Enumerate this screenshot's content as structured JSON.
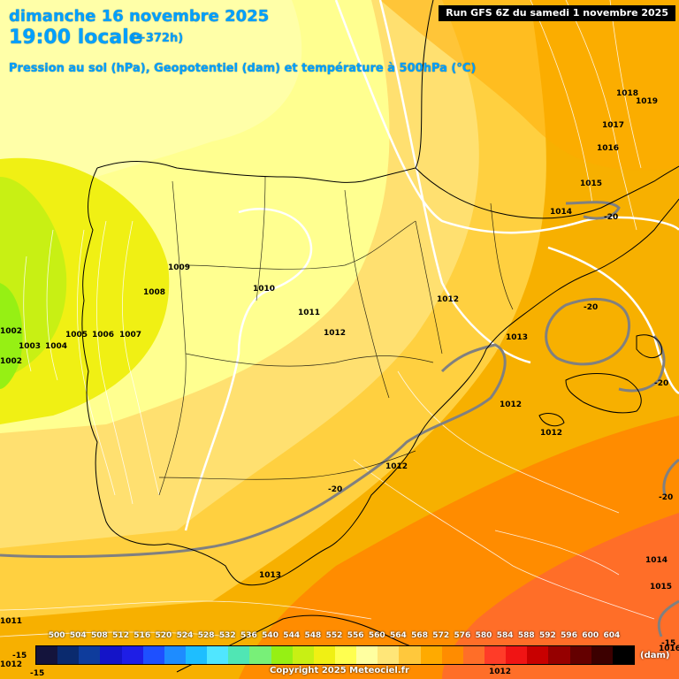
{
  "header": {
    "date_line": "dimanche 16 novembre 2025",
    "time_line": "19:00 locale",
    "lead_time": "(+372h)",
    "subtitle": "Pression au sol (hPa), Geopotentiel (dam) et température à 500hPa (°C)",
    "run_info": "Run GFS 6Z du samedi 1 novembre 2025"
  },
  "legend": {
    "ticks": [
      "500",
      "504",
      "508",
      "512",
      "516",
      "520",
      "524",
      "528",
      "532",
      "536",
      "540",
      "544",
      "548",
      "552",
      "556",
      "560",
      "564",
      "568",
      "572",
      "576",
      "580",
      "584",
      "588",
      "592",
      "596",
      "600",
      "604"
    ],
    "colors": [
      "#14143c",
      "#0a2a6e",
      "#0e3c9c",
      "#1414c8",
      "#1e1ee6",
      "#1e50ff",
      "#1e8cff",
      "#1ebeff",
      "#50e6ff",
      "#50e6b4",
      "#78f078",
      "#96f014",
      "#c8f014",
      "#f0f014",
      "#ffff50",
      "#ffffa0",
      "#ffe678",
      "#ffc83c",
      "#ffaa00",
      "#ff8c00",
      "#ff6e28",
      "#ff3c28",
      "#f01414",
      "#c80000",
      "#960000",
      "#640000",
      "#3c0000",
      "#000000"
    ],
    "unit": "(dam)"
  },
  "copyright": "Copyright 2025 Meteociel.fr",
  "isobar_labels": [
    "1018",
    "1019",
    "1017",
    "1016",
    "1015",
    "1014",
    "1013",
    "1012",
    "1012",
    "1012",
    "1012",
    "1012",
    "1011",
    "1010",
    "1009",
    "1008",
    "1007",
    "1006",
    "1005",
    "1004",
    "1003",
    "1002",
    "1002",
    "1013",
    "1014",
    "1015",
    "1016",
    "1011",
    "1012",
    "1012"
  ],
  "temp_labels": [
    "-20",
    "-20",
    "-20",
    "-20",
    "-20",
    "-15",
    "-15",
    "-15"
  ]
}
